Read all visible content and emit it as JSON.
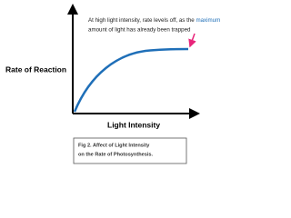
{
  "axes": {
    "y_label": "Rate of Reaction",
    "x_label": "Light Intensity"
  },
  "annotation": {
    "before": "At high light intensity, rate levels off, as the ",
    "highlight": "maximum",
    "after": "amount of light has already been trapped"
  },
  "caption": {
    "line1": "Fig 2. Affect of Light Intensity",
    "line2": "on the Rate of Photosynthesis."
  }
}
